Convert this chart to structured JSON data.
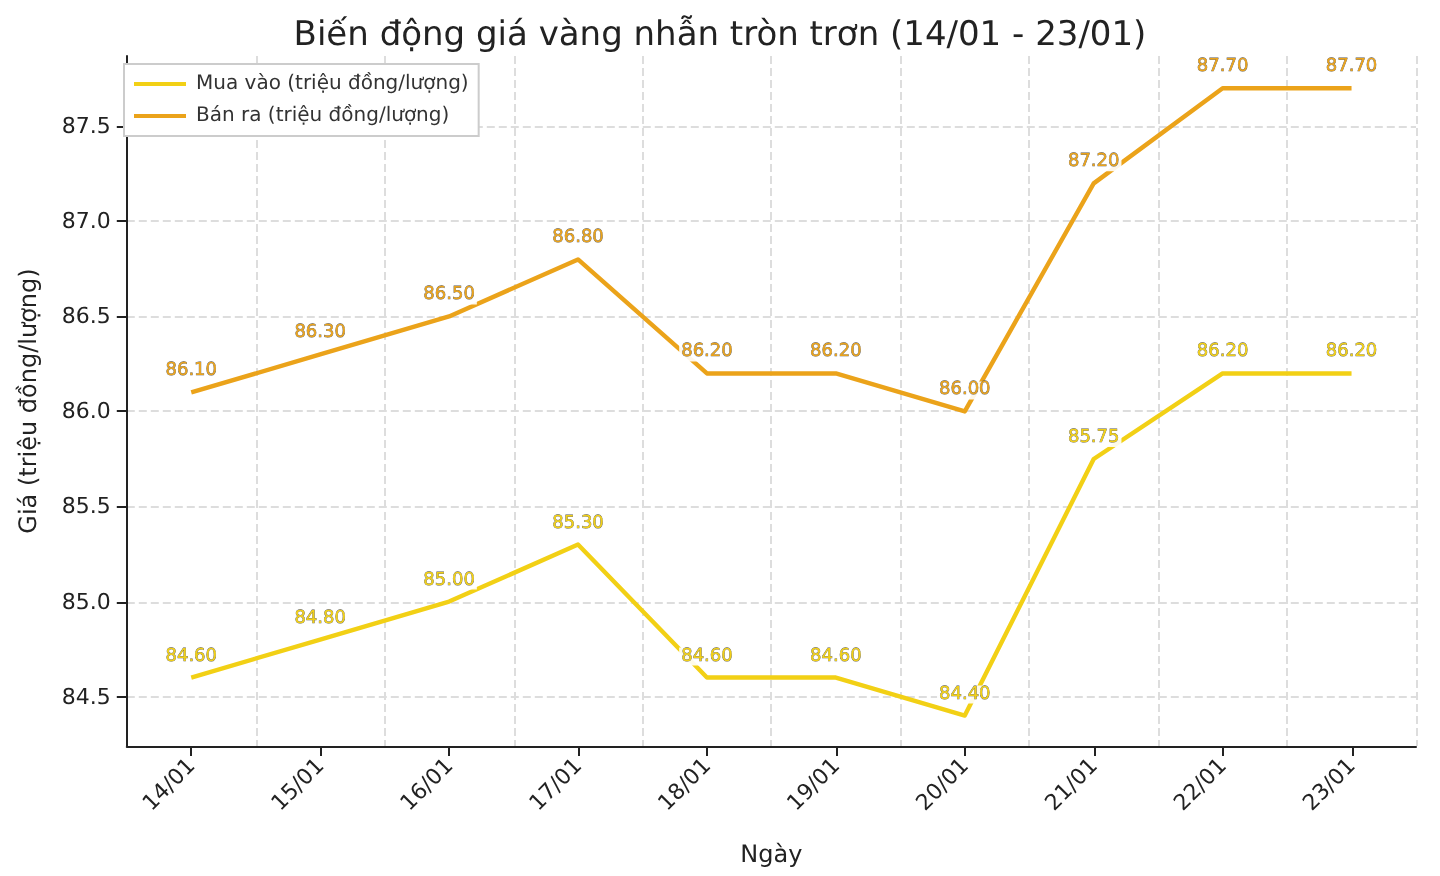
{
  "chart_data": {
    "type": "line",
    "title": "Biến động giá vàng nhẫn tròn trơn (14/01 - 23/01)",
    "xlabel": "Ngày",
    "ylabel": "Giá (triệu đồng/lượng)",
    "categories": [
      "14/01",
      "15/01",
      "16/01",
      "17/01",
      "18/01",
      "19/01",
      "20/01",
      "21/01",
      "22/01",
      "23/01"
    ],
    "series": [
      {
        "name": "Mua vào (triệu đồng/lượng)",
        "color": "#f2d015",
        "values": [
          84.6,
          84.8,
          85.0,
          85.3,
          84.6,
          84.6,
          84.4,
          85.75,
          86.2,
          86.2
        ],
        "value_labels": [
          "84.60",
          "84.80",
          "85.00",
          "85.30",
          "84.60",
          "84.60",
          "84.40",
          "85.75",
          "86.20",
          "86.20"
        ]
      },
      {
        "name": "Bán ra (triệu đồng/lượng)",
        "color": "#eba31a",
        "values": [
          86.1,
          86.3,
          86.5,
          86.8,
          86.2,
          86.2,
          86.0,
          87.2,
          87.7,
          87.7
        ],
        "value_labels": [
          "86.10",
          "86.30",
          "86.50",
          "86.80",
          "86.20",
          "86.20",
          "86.00",
          "87.20",
          "87.70",
          "87.70"
        ]
      }
    ],
    "ylim": [
      84.24,
      87.87
    ],
    "yticks": [
      {
        "value": 84.5,
        "label": "84.5"
      },
      {
        "value": 85,
        "label": "85.0"
      },
      {
        "value": 85.5,
        "label": "85.5"
      },
      {
        "value": 86,
        "label": "86.0"
      },
      {
        "value": 86.5,
        "label": "86.5"
      },
      {
        "value": 87,
        "label": "87.0"
      },
      {
        "value": 87.5,
        "label": "87.5"
      }
    ],
    "grid": true,
    "legend": "top left",
    "marker": "none",
    "line_style": "solid"
  }
}
